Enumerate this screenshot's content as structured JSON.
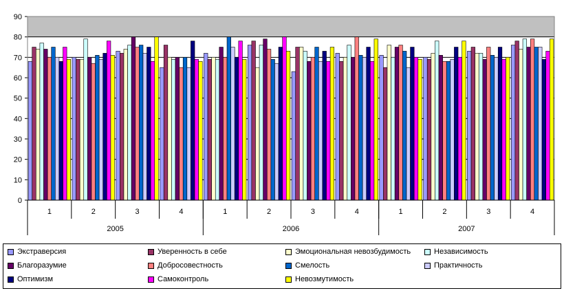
{
  "chart_data": {
    "type": "bar",
    "ylim": [
      0,
      90
    ],
    "ytick_step": 10,
    "grid": true,
    "legend_position": "bottom",
    "categories": [
      "1",
      "2",
      "3",
      "4",
      "1",
      "2",
      "3",
      "4",
      "1",
      "2",
      "3",
      "4"
    ],
    "groups": [
      {
        "label": "2005",
        "count": 4
      },
      {
        "label": "2006",
        "count": 4
      },
      {
        "label": "2007",
        "count": 4
      }
    ],
    "series": [
      {
        "name": "Экстраверсия",
        "color": "#9999ff",
        "values": [
          68,
          70,
          73,
          65,
          72,
          76,
          63,
          72,
          71,
          70,
          73,
          76
        ]
      },
      {
        "name": "Уверенность в себе",
        "color": "#993366",
        "values": [
          75,
          69,
          72,
          76,
          69,
          78,
          75,
          68,
          65,
          69,
          75,
          78
        ]
      },
      {
        "name": "Эмоциональная невозбудимость",
        "color": "#ffffcc",
        "values": [
          74,
          69,
          74,
          70,
          70,
          65,
          75,
          70,
          76,
          72,
          72,
          74
        ]
      },
      {
        "name": "Независимость",
        "color": "#ccffff",
        "values": [
          77,
          79,
          76,
          69,
          69,
          76,
          73,
          76,
          70,
          78,
          72,
          79
        ]
      },
      {
        "name": "Благоразумие",
        "color": "#660066",
        "values": [
          74,
          70,
          80,
          70,
          75,
          79,
          68,
          70,
          75,
          71,
          69,
          75
        ]
      },
      {
        "name": "Добросовестность",
        "color": "#ff8080",
        "values": [
          70,
          67,
          75,
          65,
          70,
          74,
          70,
          80,
          76,
          68,
          75,
          79
        ]
      },
      {
        "name": "Смелость",
        "color": "#0066cc",
        "values": [
          75,
          71,
          76,
          70,
          80,
          69,
          75,
          71,
          73,
          68,
          71,
          75
        ]
      },
      {
        "name": "Практичность",
        "color": "#ccccff",
        "values": [
          70,
          69,
          72,
          65,
          75,
          67,
          68,
          70,
          65,
          69,
          70,
          75
        ]
      },
      {
        "name": "Оптимизм",
        "color": "#000080",
        "values": [
          68,
          72,
          75,
          78,
          70,
          75,
          73,
          75,
          75,
          75,
          75,
          69
        ]
      },
      {
        "name": "Самоконтроль",
        "color": "#ff00ff",
        "values": [
          75,
          78,
          68,
          69,
          78,
          80,
          68,
          68,
          70,
          70,
          69,
          73
        ]
      },
      {
        "name": "Невозмутимость",
        "color": "#ffff00",
        "values": [
          69,
          71,
          80,
          68,
          69,
          73,
          75,
          79,
          69,
          78,
          70,
          79
        ]
      }
    ]
  }
}
